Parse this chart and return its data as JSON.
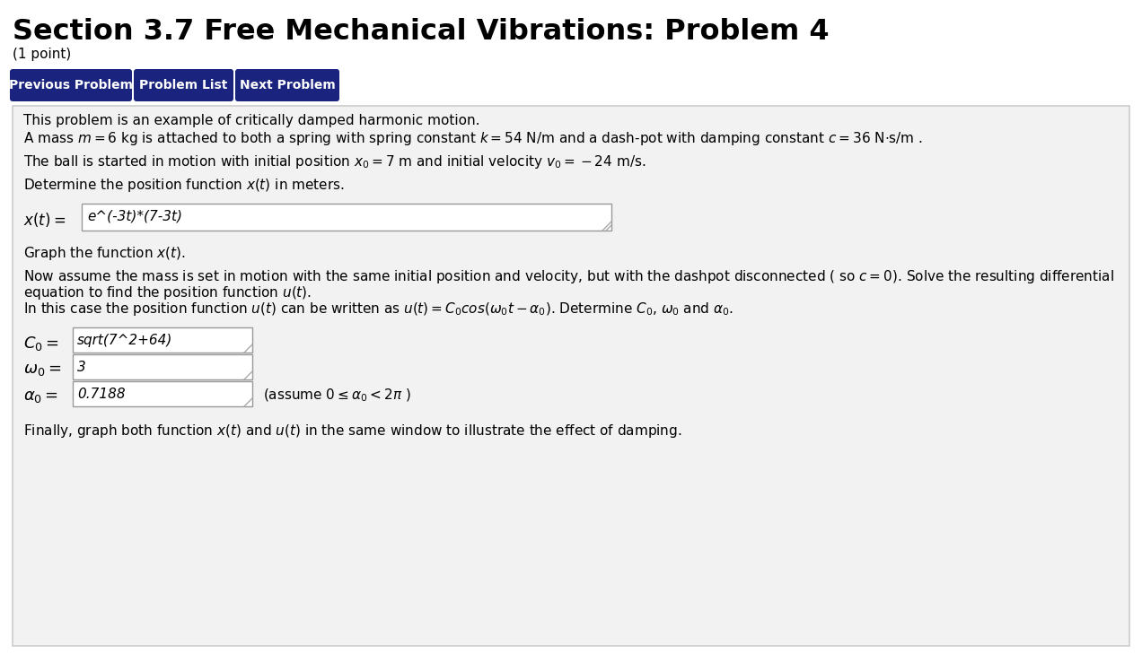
{
  "title": "Section 3.7 Free Mechanical Vibrations: Problem 4",
  "subtitle": "(1 point)",
  "bg_color": "#ffffff",
  "content_bg": "#f2f2f2",
  "button_color": "#1a237e",
  "button_text_color": "#ffffff",
  "buttons": [
    "Previous Problem",
    "Problem List",
    "Next Problem"
  ],
  "xt_answer": "e^(-3t)*(7-3t)",
  "C0_answer": "sqrt(7^2+64)",
  "w0_answer": "3",
  "a0_answer": "0.7188",
  "border_color": "#cccccc",
  "text_color": "#000000",
  "input_border": "#999999",
  "input_bg": "#ffffff"
}
